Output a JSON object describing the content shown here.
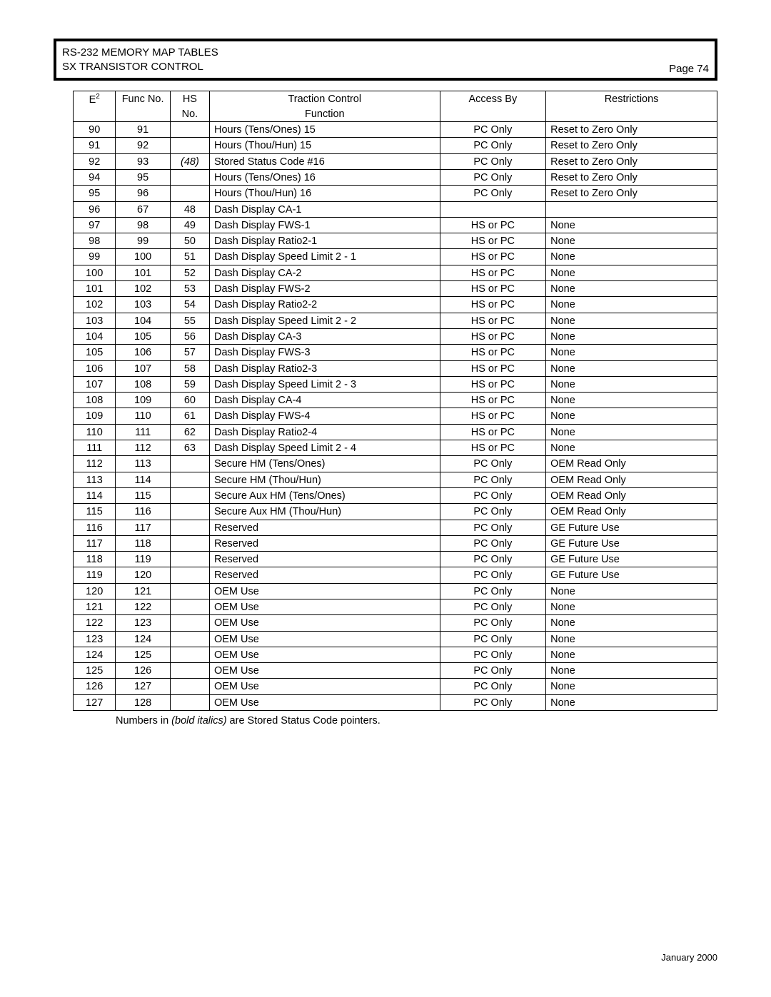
{
  "header": {
    "line1": "RS-232 MEMORY MAP TABLES",
    "line2": "SX TRANSISTOR CONTROL",
    "page_label": "Page 74"
  },
  "columns": {
    "e2_base": "E",
    "e2_sup": "2",
    "func": "Func No.",
    "hs1": "HS",
    "hs2": "No.",
    "tc1": "Traction Control",
    "tc2": "Function",
    "access": "Access By",
    "restrictions": "Restrictions"
  },
  "rows": [
    {
      "e2": "90",
      "func": "91",
      "hs": "",
      "hs_italic": false,
      "tc": "Hours (Tens/Ones) 15",
      "access": "PC Only",
      "res": "Reset to Zero Only"
    },
    {
      "e2": "91",
      "func": "92",
      "hs": "",
      "hs_italic": false,
      "tc": "Hours (Thou/Hun) 15",
      "access": "PC Only",
      "res": "Reset to Zero Only"
    },
    {
      "e2": "92",
      "func": "93",
      "hs": "(48)",
      "hs_italic": true,
      "tc": "Stored Status Code #16",
      "access": "PC Only",
      "res": "Reset to Zero Only"
    },
    {
      "e2": "94",
      "func": "95",
      "hs": "",
      "hs_italic": false,
      "tc": "Hours (Tens/Ones) 16",
      "access": "PC Only",
      "res": "Reset to Zero Only"
    },
    {
      "e2": "95",
      "func": "96",
      "hs": "",
      "hs_italic": false,
      "tc": "Hours (Thou/Hun) 16",
      "access": "PC Only",
      "res": "Reset to Zero Only"
    },
    {
      "e2": "96",
      "func": "67",
      "hs": "48",
      "hs_italic": false,
      "tc": "Dash Display CA-1",
      "access": "",
      "res": ""
    },
    {
      "e2": "97",
      "func": "98",
      "hs": "49",
      "hs_italic": false,
      "tc": "Dash Display FWS-1",
      "access": "HS or PC",
      "res": "None"
    },
    {
      "e2": "98",
      "func": "99",
      "hs": "50",
      "hs_italic": false,
      "tc": "Dash Display Ratio2-1",
      "access": "HS or PC",
      "res": "None"
    },
    {
      "e2": "99",
      "func": "100",
      "hs": "51",
      "hs_italic": false,
      "tc": "Dash Display Speed Limit 2 - 1",
      "access": "HS or PC",
      "res": "None"
    },
    {
      "e2": "100",
      "func": "101",
      "hs": "52",
      "hs_italic": false,
      "tc": "Dash Display CA-2",
      "access": "HS or PC",
      "res": "None"
    },
    {
      "e2": "101",
      "func": "102",
      "hs": "53",
      "hs_italic": false,
      "tc": "Dash Display FWS-2",
      "access": "HS or PC",
      "res": "None"
    },
    {
      "e2": "102",
      "func": "103",
      "hs": "54",
      "hs_italic": false,
      "tc": "Dash Display Ratio2-2",
      "access": "HS or PC",
      "res": "None"
    },
    {
      "e2": "103",
      "func": "104",
      "hs": "55",
      "hs_italic": false,
      "tc": "Dash Display Speed Limit 2 - 2",
      "access": "HS or PC",
      "res": "None"
    },
    {
      "e2": "104",
      "func": "105",
      "hs": "56",
      "hs_italic": false,
      "tc": "Dash Display CA-3",
      "access": "HS or PC",
      "res": "None"
    },
    {
      "e2": "105",
      "func": "106",
      "hs": "57",
      "hs_italic": false,
      "tc": "Dash Display FWS-3",
      "access": "HS or PC",
      "res": "None"
    },
    {
      "e2": "106",
      "func": "107",
      "hs": "58",
      "hs_italic": false,
      "tc": "Dash Display Ratio2-3",
      "access": "HS or PC",
      "res": "None"
    },
    {
      "e2": "107",
      "func": "108",
      "hs": "59",
      "hs_italic": false,
      "tc": "Dash Display Speed Limit 2 - 3",
      "access": "HS or PC",
      "res": "None"
    },
    {
      "e2": "108",
      "func": "109",
      "hs": "60",
      "hs_italic": false,
      "tc": "Dash Display CA-4",
      "access": "HS or PC",
      "res": "None"
    },
    {
      "e2": "109",
      "func": "110",
      "hs": "61",
      "hs_italic": false,
      "tc": "Dash Display FWS-4",
      "access": "HS or PC",
      "res": "None"
    },
    {
      "e2": "110",
      "func": "111",
      "hs": "62",
      "hs_italic": false,
      "tc": "Dash Display Ratio2-4",
      "access": "HS or PC",
      "res": "None"
    },
    {
      "e2": "111",
      "func": "112",
      "hs": "63",
      "hs_italic": false,
      "tc": "Dash Display Speed Limit 2 - 4",
      "access": "HS or PC",
      "res": "None"
    },
    {
      "e2": "112",
      "func": "113",
      "hs": "",
      "hs_italic": false,
      "tc": "Secure HM (Tens/Ones)",
      "access": "PC Only",
      "res": "OEM Read Only"
    },
    {
      "e2": "113",
      "func": "114",
      "hs": "",
      "hs_italic": false,
      "tc": "Secure HM (Thou/Hun)",
      "access": "PC Only",
      "res": "OEM Read Only"
    },
    {
      "e2": "114",
      "func": "115",
      "hs": "",
      "hs_italic": false,
      "tc": "Secure  Aux HM (Tens/Ones)",
      "access": "PC Only",
      "res": "OEM Read Only"
    },
    {
      "e2": "115",
      "func": "116",
      "hs": "",
      "hs_italic": false,
      "tc": "Secure Aux HM (Thou/Hun)",
      "access": "PC Only",
      "res": "OEM Read Only"
    },
    {
      "e2": "116",
      "func": "117",
      "hs": "",
      "hs_italic": false,
      "tc": "Reserved",
      "access": "PC Only",
      "res": "GE Future Use"
    },
    {
      "e2": "117",
      "func": "118",
      "hs": "",
      "hs_italic": false,
      "tc": "Reserved",
      "access": "PC Only",
      "res": "GE Future Use"
    },
    {
      "e2": "118",
      "func": "119",
      "hs": "",
      "hs_italic": false,
      "tc": "Reserved",
      "access": "PC Only",
      "res": "GE Future Use"
    },
    {
      "e2": "119",
      "func": "120",
      "hs": "",
      "hs_italic": false,
      "tc": "Reserved",
      "access": "PC Only",
      "res": "GE Future Use"
    },
    {
      "e2": "120",
      "func": "121",
      "hs": "",
      "hs_italic": false,
      "tc": "OEM Use",
      "access": "PC Only",
      "res": "None"
    },
    {
      "e2": "121",
      "func": "122",
      "hs": "",
      "hs_italic": false,
      "tc": "OEM Use",
      "access": "PC Only",
      "res": "None"
    },
    {
      "e2": "122",
      "func": "123",
      "hs": "",
      "hs_italic": false,
      "tc": "OEM Use",
      "access": "PC Only",
      "res": "None"
    },
    {
      "e2": "123",
      "func": "124",
      "hs": "",
      "hs_italic": false,
      "tc": "OEM Use",
      "access": "PC Only",
      "res": "None"
    },
    {
      "e2": "124",
      "func": "125",
      "hs": "",
      "hs_italic": false,
      "tc": "OEM Use",
      "access": "PC Only",
      "res": "None"
    },
    {
      "e2": "125",
      "func": "126",
      "hs": "",
      "hs_italic": false,
      "tc": "OEM Use",
      "access": "PC Only",
      "res": "None"
    },
    {
      "e2": "126",
      "func": "127",
      "hs": "",
      "hs_italic": false,
      "tc": "OEM Use",
      "access": "PC Only",
      "res": "None"
    },
    {
      "e2": "127",
      "func": "128",
      "hs": "",
      "hs_italic": false,
      "tc": "OEM Use",
      "access": "PC Only",
      "res": "None"
    }
  ],
  "footnote": {
    "pre": "Numbers in ",
    "italic": "(bold italics)",
    "post": " are Stored Status Code pointers."
  },
  "footer_date": "January 2000"
}
